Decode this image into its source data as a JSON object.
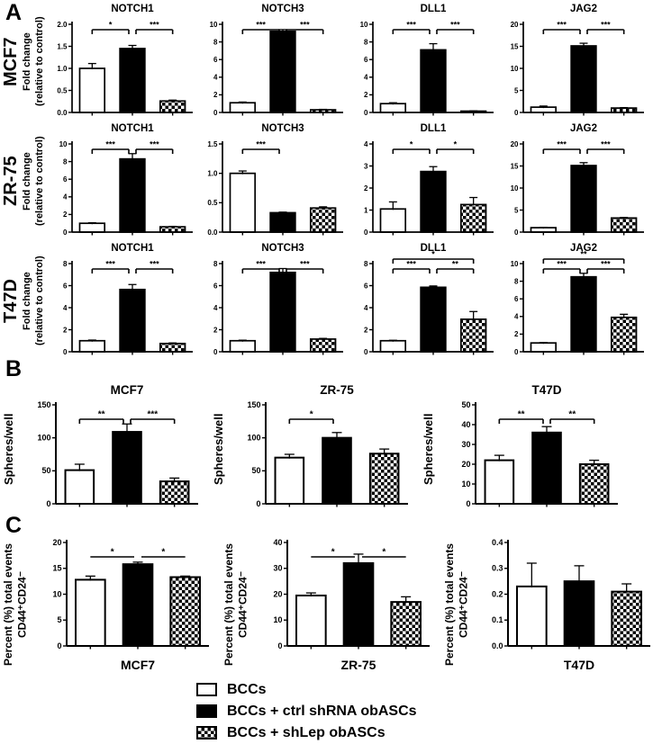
{
  "cell_lines": [
    "MCF7",
    "ZR-75",
    "T47D"
  ],
  "gene_titles": [
    "NOTCH1",
    "NOTCH3",
    "DLL1",
    "JAG2"
  ],
  "labels": {
    "panel_a_letter": "A",
    "panel_b_letter": "B",
    "panel_c_letter": "C",
    "fold_change_line1": "Fold change",
    "fold_change_line2": "(relative to control)",
    "spheres_ylabel": "Spheres/well",
    "percent_ylabel_line1": "Percent (%) total events",
    "percent_ylabel_line2": "CD44⁺CD24⁻"
  },
  "legend": {
    "items": [
      {
        "swatch": "white",
        "label": "BCCs"
      },
      {
        "swatch": "black",
        "label": "BCCs + ctrl shRNA obASCs"
      },
      {
        "swatch": "checker",
        "label": "BCCs + shLep obASCs"
      }
    ]
  },
  "chart_data": [
    {
      "panel": "A",
      "cell_line": "MCF7",
      "type": "bar",
      "title": "NOTCH1",
      "ylabel": "Fold change (relative to control)",
      "categories": [
        "BCCs",
        "BCCs + ctrl shRNA obASCs",
        "BCCs + shLep obASCs"
      ],
      "values": [
        1.0,
        1.45,
        0.26
      ],
      "errors": [
        0.11,
        0.07,
        0.02
      ],
      "ylim": [
        0,
        2
      ],
      "yticks": [
        "0.0",
        "0.5",
        "1.0",
        "1.5",
        "2.0"
      ],
      "significance": [
        {
          "pair": [
            0,
            1
          ],
          "label": "*"
        },
        {
          "pair": [
            1,
            2
          ],
          "label": "***"
        }
      ]
    },
    {
      "panel": "A",
      "cell_line": "MCF7",
      "type": "bar",
      "title": "NOTCH3",
      "ylabel": "Fold change (relative to control)",
      "categories": [
        "BCCs",
        "BCCs + ctrl shRNA obASCs",
        "BCCs + shLep obASCs"
      ],
      "values": [
        1.1,
        9.2,
        0.3
      ],
      "errors": [
        0.08,
        0.2,
        0.05
      ],
      "ylim": [
        0,
        10
      ],
      "yticks": [
        "0",
        "2",
        "4",
        "6",
        "8",
        "10"
      ],
      "significance": [
        {
          "pair": [
            0,
            1
          ],
          "label": "***"
        },
        {
          "pair": [
            1,
            2
          ],
          "label": "***"
        }
      ]
    },
    {
      "panel": "A",
      "cell_line": "MCF7",
      "type": "bar",
      "title": "DLL1",
      "ylabel": "Fold change (relative to control)",
      "categories": [
        "BCCs",
        "BCCs + ctrl shRNA obASCs",
        "BCCs + shLep obASCs"
      ],
      "values": [
        1.0,
        7.1,
        0.15
      ],
      "errors": [
        0.1,
        0.7,
        0.03
      ],
      "ylim": [
        0,
        10
      ],
      "yticks": [
        "0",
        "2",
        "4",
        "6",
        "8",
        "10"
      ],
      "significance": [
        {
          "pair": [
            0,
            1
          ],
          "label": "***"
        },
        {
          "pair": [
            1,
            2
          ],
          "label": "***"
        }
      ]
    },
    {
      "panel": "A",
      "cell_line": "MCF7",
      "type": "bar",
      "title": "JAG2",
      "ylabel": "Fold change (relative to control)",
      "categories": [
        "BCCs",
        "BCCs + ctrl shRNA obASCs",
        "BCCs + shLep obASCs"
      ],
      "values": [
        1.2,
        15.1,
        1.0
      ],
      "errors": [
        0.25,
        0.6,
        0.1
      ],
      "ylim": [
        0,
        20
      ],
      "yticks": [
        "0",
        "5",
        "10",
        "15",
        "20"
      ],
      "significance": [
        {
          "pair": [
            0,
            1
          ],
          "label": "***"
        },
        {
          "pair": [
            1,
            2
          ],
          "label": "***"
        }
      ]
    },
    {
      "panel": "A",
      "cell_line": "ZR-75",
      "type": "bar",
      "title": "NOTCH1",
      "ylabel": "Fold change (relative to control)",
      "categories": [
        "BCCs",
        "BCCs + ctrl shRNA obASCs",
        "BCCs + shLep obASCs"
      ],
      "values": [
        1.0,
        8.3,
        0.6
      ],
      "errors": [
        0.06,
        0.6,
        0.05
      ],
      "ylim": [
        0,
        10
      ],
      "yticks": [
        "0",
        "2",
        "4",
        "6",
        "8",
        "10"
      ],
      "significance": [
        {
          "pair": [
            0,
            1
          ],
          "label": "***"
        },
        {
          "pair": [
            1,
            2
          ],
          "label": "***"
        }
      ]
    },
    {
      "panel": "A",
      "cell_line": "ZR-75",
      "type": "bar",
      "title": "NOTCH3",
      "ylabel": "Fold change (relative to control)",
      "categories": [
        "BCCs",
        "BCCs + ctrl shRNA obASCs",
        "BCCs + shLep obASCs"
      ],
      "values": [
        1.0,
        0.33,
        0.41
      ],
      "errors": [
        0.04,
        0.01,
        0.02
      ],
      "ylim": [
        0,
        1.5
      ],
      "yticks": [
        "0.0",
        "0.5",
        "1.0",
        "1.5"
      ],
      "significance": [
        {
          "pair": [
            0,
            1
          ],
          "label": "***"
        }
      ]
    },
    {
      "panel": "A",
      "cell_line": "ZR-75",
      "type": "bar",
      "title": "DLL1",
      "ylabel": "Fold change (relative to control)",
      "categories": [
        "BCCs",
        "BCCs + ctrl shRNA obASCs",
        "BCCs + shLep obASCs"
      ],
      "values": [
        1.05,
        2.75,
        1.25
      ],
      "errors": [
        0.32,
        0.22,
        0.32
      ],
      "ylim": [
        0,
        4
      ],
      "yticks": [
        "0",
        "1",
        "2",
        "3",
        "4"
      ],
      "significance": [
        {
          "pair": [
            0,
            1
          ],
          "label": "*"
        },
        {
          "pair": [
            1,
            2
          ],
          "label": "*"
        }
      ]
    },
    {
      "panel": "A",
      "cell_line": "ZR-75",
      "type": "bar",
      "title": "JAG2",
      "ylabel": "Fold change (relative to control)",
      "categories": [
        "BCCs",
        "BCCs + ctrl shRNA obASCs",
        "BCCs + shLep obASCs"
      ],
      "values": [
        1.0,
        15.1,
        3.2
      ],
      "errors": [
        0.05,
        0.65,
        0.12
      ],
      "ylim": [
        0,
        20
      ],
      "yticks": [
        "0",
        "5",
        "10",
        "15",
        "20"
      ],
      "significance": [
        {
          "pair": [
            0,
            1
          ],
          "label": "***"
        },
        {
          "pair": [
            1,
            2
          ],
          "label": "***"
        }
      ]
    },
    {
      "panel": "A",
      "cell_line": "T47D",
      "type": "bar",
      "title": "NOTCH1",
      "ylabel": "Fold change (relative to control)",
      "categories": [
        "BCCs",
        "BCCs + ctrl shRNA obASCs",
        "BCCs + shLep obASCs"
      ],
      "values": [
        1.0,
        5.65,
        0.75
      ],
      "errors": [
        0.06,
        0.45,
        0.05
      ],
      "ylim": [
        0,
        8
      ],
      "yticks": [
        "0",
        "2",
        "4",
        "6",
        "8"
      ],
      "significance": [
        {
          "pair": [
            0,
            1
          ],
          "label": "***"
        },
        {
          "pair": [
            1,
            2
          ],
          "label": "***"
        }
      ]
    },
    {
      "panel": "A",
      "cell_line": "T47D",
      "type": "bar",
      "title": "NOTCH3",
      "ylabel": "Fold change (relative to control)",
      "categories": [
        "BCCs",
        "BCCs + ctrl shRNA obASCs",
        "BCCs + shLep obASCs"
      ],
      "values": [
        1.0,
        7.2,
        1.15
      ],
      "errors": [
        0.05,
        0.35,
        0.06
      ],
      "ylim": [
        0,
        8
      ],
      "yticks": [
        "0",
        "2",
        "4",
        "6",
        "8"
      ],
      "significance": [
        {
          "pair": [
            0,
            1
          ],
          "label": "***"
        },
        {
          "pair": [
            1,
            2
          ],
          "label": "***"
        }
      ]
    },
    {
      "panel": "A",
      "cell_line": "T47D",
      "type": "bar",
      "title": "DLL1",
      "ylabel": "Fold change (relative to control)",
      "categories": [
        "BCCs",
        "BCCs + ctrl shRNA obASCs",
        "BCCs + shLep obASCs"
      ],
      "values": [
        1.0,
        5.85,
        2.95
      ],
      "errors": [
        0.04,
        0.12,
        0.7
      ],
      "ylim": [
        0,
        8
      ],
      "yticks": [
        "0",
        "2",
        "4",
        "6",
        "8"
      ],
      "significance": [
        {
          "pair": [
            0,
            1
          ],
          "label": "***"
        },
        {
          "pair": [
            1,
            2
          ],
          "label": "**"
        },
        {
          "pair": [
            0,
            2
          ],
          "label": "*",
          "level": 1
        }
      ]
    },
    {
      "panel": "A",
      "cell_line": "T47D",
      "type": "bar",
      "title": "JAG2",
      "ylabel": "Fold change (relative to control)",
      "categories": [
        "BCCs",
        "BCCs + ctrl shRNA obASCs",
        "BCCs + shLep obASCs"
      ],
      "values": [
        1.0,
        8.5,
        3.9
      ],
      "errors": [
        0.05,
        0.4,
        0.35
      ],
      "ylim": [
        0,
        10
      ],
      "yticks": [
        "0",
        "2",
        "4",
        "6",
        "8",
        "10"
      ],
      "significance": [
        {
          "pair": [
            0,
            1
          ],
          "label": "***"
        },
        {
          "pair": [
            1,
            2
          ],
          "label": "***"
        },
        {
          "pair": [
            0,
            2
          ],
          "label": "**",
          "level": 1
        }
      ]
    },
    {
      "panel": "B",
      "type": "bar",
      "title": "MCF7",
      "ylabel": "Spheres/well",
      "categories": [
        "BCCs",
        "BCCs + ctrl shRNA obASCs",
        "BCCs + shLep obASCs"
      ],
      "values": [
        51,
        109,
        34
      ],
      "errors": [
        9,
        12,
        5
      ],
      "ylim": [
        0,
        150
      ],
      "yticks": [
        "0",
        "50",
        "100",
        "150"
      ],
      "significance": [
        {
          "pair": [
            0,
            1
          ],
          "label": "**"
        },
        {
          "pair": [
            1,
            2
          ],
          "label": "***"
        }
      ]
    },
    {
      "panel": "B",
      "type": "bar",
      "title": "ZR-75",
      "ylabel": "Spheres/well",
      "categories": [
        "BCCs",
        "BCCs + ctrl shRNA obASCs",
        "BCCs + shLep obASCs"
      ],
      "values": [
        70,
        100,
        76
      ],
      "errors": [
        5,
        8,
        7
      ],
      "ylim": [
        0,
        150
      ],
      "yticks": [
        "0",
        "50",
        "100",
        "150"
      ],
      "significance": [
        {
          "pair": [
            0,
            1
          ],
          "label": "*"
        }
      ]
    },
    {
      "panel": "B",
      "type": "bar",
      "title": "T47D",
      "ylabel": "Spheres/well",
      "categories": [
        "BCCs",
        "BCCs + ctrl shRNA obASCs",
        "BCCs + shLep obASCs"
      ],
      "values": [
        22,
        36,
        20
      ],
      "errors": [
        2.5,
        3,
        2
      ],
      "ylim": [
        0,
        50
      ],
      "yticks": [
        "0",
        "10",
        "20",
        "30",
        "40",
        "50"
      ],
      "significance": [
        {
          "pair": [
            0,
            1
          ],
          "label": "**"
        },
        {
          "pair": [
            1,
            2
          ],
          "label": "**"
        }
      ]
    },
    {
      "panel": "C",
      "type": "bar",
      "xlabel": "MCF7",
      "ylabel": "Percent (%) total events CD44⁺CD24⁻",
      "categories": [
        "BCCs",
        "BCCs + ctrl shRNA obASCs",
        "BCCs + shLep obASCs"
      ],
      "values": [
        12.8,
        15.8,
        13.3
      ],
      "errors": [
        0.7,
        0.4,
        0.2
      ],
      "ylim": [
        0,
        20
      ],
      "yticks": [
        "0",
        "5",
        "10",
        "15",
        "20"
      ],
      "significance": [
        {
          "pair": [
            0,
            1
          ],
          "label": "*"
        },
        {
          "pair": [
            1,
            2
          ],
          "label": "*"
        }
      ]
    },
    {
      "panel": "C",
      "type": "bar",
      "xlabel": "ZR-75",
      "ylabel": "Percent (%) total events CD44⁺CD24⁻",
      "categories": [
        "BCCs",
        "BCCs + ctrl shRNA obASCs",
        "BCCs + shLep obASCs"
      ],
      "values": [
        19.5,
        32,
        17
      ],
      "errors": [
        1.0,
        3.5,
        2.0
      ],
      "ylim": [
        0,
        40
      ],
      "yticks": [
        "0",
        "10",
        "20",
        "30",
        "40"
      ],
      "significance": [
        {
          "pair": [
            0,
            1
          ],
          "label": "*"
        },
        {
          "pair": [
            1,
            2
          ],
          "label": "*"
        }
      ]
    },
    {
      "panel": "C",
      "type": "bar",
      "xlabel": "T47D",
      "ylabel": "Percent (%) total events CD44⁺CD24⁻",
      "categories": [
        "BCCs",
        "BCCs + ctrl shRNA obASCs",
        "BCCs + shLep obASCs"
      ],
      "values": [
        0.23,
        0.25,
        0.21
      ],
      "errors": [
        0.09,
        0.06,
        0.03
      ],
      "ylim": [
        0,
        0.4
      ],
      "yticks": [
        "0.0",
        "0.1",
        "0.2",
        "0.3",
        "0.4"
      ],
      "significance": []
    }
  ]
}
